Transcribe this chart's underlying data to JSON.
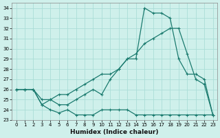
{
  "xlabel": "Humidex (Indice chaleur)",
  "xlim": [
    -0.5,
    23.5
  ],
  "ylim": [
    23,
    34.5
  ],
  "yticks": [
    23,
    24,
    25,
    26,
    27,
    28,
    29,
    30,
    31,
    32,
    33,
    34
  ],
  "xticks": [
    0,
    1,
    2,
    3,
    4,
    5,
    6,
    7,
    8,
    9,
    10,
    11,
    12,
    13,
    14,
    15,
    16,
    17,
    18,
    19,
    20,
    21,
    22,
    23
  ],
  "bg_color": "#cff0eb",
  "grid_color": "#aaddd7",
  "line_color": "#1a7a6e",
  "line1_x": [
    0,
    1,
    2,
    3,
    4,
    5,
    6,
    7,
    8,
    9,
    10,
    11,
    12,
    13,
    14,
    15,
    16,
    17,
    18,
    19,
    20,
    21,
    22,
    23
  ],
  "line1_y": [
    26.0,
    26.0,
    26.0,
    24.5,
    24.0,
    23.7,
    24.0,
    23.5,
    23.5,
    23.5,
    24.0,
    24.0,
    24.0,
    24.0,
    23.5,
    23.5,
    23.5,
    23.5,
    23.5,
    23.5,
    23.5,
    23.5,
    23.5,
    23.5
  ],
  "line2_x": [
    0,
    1,
    2,
    3,
    4,
    5,
    6,
    7,
    8,
    9,
    10,
    11,
    12,
    13,
    14,
    15,
    16,
    17,
    18,
    19,
    20,
    21,
    22,
    23
  ],
  "line2_y": [
    26.0,
    26.0,
    26.0,
    25.0,
    25.0,
    25.5,
    25.5,
    26.0,
    26.5,
    27.0,
    27.5,
    27.5,
    28.0,
    29.0,
    29.5,
    30.5,
    31.0,
    31.5,
    32.0,
    32.0,
    29.5,
    27.0,
    26.5,
    23.5
  ],
  "line3_x": [
    0,
    1,
    2,
    3,
    4,
    5,
    6,
    7,
    8,
    9,
    10,
    11,
    12,
    13,
    14,
    15,
    16,
    17,
    18,
    19,
    20,
    21,
    22,
    23
  ],
  "line3_y": [
    26.0,
    26.0,
    26.0,
    24.5,
    25.0,
    24.5,
    24.5,
    25.0,
    25.5,
    26.0,
    25.5,
    27.0,
    28.0,
    29.0,
    29.0,
    34.0,
    33.5,
    33.5,
    33.0,
    29.0,
    27.5,
    27.5,
    27.0,
    23.5
  ]
}
